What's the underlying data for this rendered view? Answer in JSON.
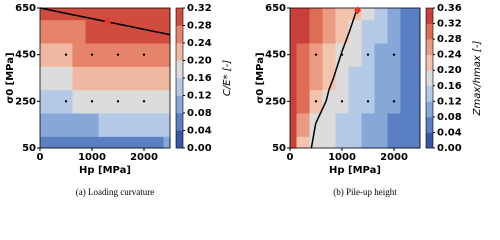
{
  "chart_data": [
    {
      "type": "contour",
      "caption": "(a) Loading curvature",
      "x_label": "Hp [MPa]",
      "y_label": "σ0 [MPa]",
      "colorbar_label": "C/E* [-]",
      "xlim": [
        0,
        2500
      ],
      "ylim": [
        50,
        650
      ],
      "xticks": [
        0,
        1000,
        2000
      ],
      "yticks": [
        50,
        250,
        450,
        650
      ],
      "x": [
        0,
        250,
        500,
        750,
        1000,
        1250,
        1500,
        1750,
        2000,
        2250,
        2500
      ],
      "y": [
        50,
        150,
        250,
        350,
        450,
        550,
        650
      ],
      "z": [
        [
          0.04,
          0.044,
          0.048,
          0.052,
          0.056,
          0.06,
          0.064,
          0.068,
          0.072,
          0.076,
          0.08
        ],
        [
          0.1,
          0.104,
          0.108,
          0.112,
          0.116,
          0.12,
          0.124,
          0.128,
          0.132,
          0.136,
          0.14
        ],
        [
          0.15,
          0.154,
          0.158,
          0.162,
          0.166,
          0.17,
          0.174,
          0.178,
          0.182,
          0.186,
          0.19
        ],
        [
          0.19,
          0.194,
          0.198,
          0.202,
          0.206,
          0.21,
          0.214,
          0.218,
          0.222,
          0.226,
          0.23
        ],
        [
          0.23,
          0.234,
          0.238,
          0.242,
          0.246,
          0.25,
          0.254,
          0.258,
          0.262,
          0.266,
          0.27
        ],
        [
          0.265,
          0.269,
          0.273,
          0.277,
          0.281,
          0.285,
          0.289,
          0.293,
          0.297,
          0.301,
          0.305
        ],
        [
          0.3,
          0.304,
          0.308,
          0.312,
          0.316,
          0.32,
          0.324,
          0.328,
          0.332,
          0.336,
          0.34
        ]
      ],
      "cticks": [
        {
          "value": 0,
          "label": "0.00"
        },
        {
          "value": 0.04,
          "label": "0.04"
        },
        {
          "value": 0.08,
          "label": "0.08"
        },
        {
          "value": 0.12,
          "label": "0.12"
        },
        {
          "value": 0.16,
          "label": "0.16"
        },
        {
          "value": 0.2,
          "label": "0.20"
        },
        {
          "value": 0.24,
          "label": "0.24"
        },
        {
          "value": 0.28,
          "label": "0.28"
        },
        {
          "value": 0.32,
          "label": "0.32"
        }
      ],
      "colors": [
        "#3a56a6",
        "#5a7fc2",
        "#87a7d8",
        "#b4c9e6",
        "#dcdcdc",
        "#f0b8a0",
        "#e5846a",
        "#cf4c3e"
      ],
      "contour_level": 0.3,
      "points": {
        "x": [
          500,
          1000,
          1500,
          2000,
          500,
          1000,
          1500,
          2000
        ],
        "y": [
          450,
          450,
          450,
          450,
          250,
          250,
          250,
          250
        ]
      },
      "marker": {
        "x": 1300,
        "y": 590,
        "color": "#e8322a"
      }
    },
    {
      "type": "contour",
      "caption": "(b) Pile-up height",
      "x_label": "Hp [MPa]",
      "y_label": "σ0 [MPa]",
      "colorbar_label": "Zmax/hmax [-]",
      "xlim": [
        0,
        2500
      ],
      "ylim": [
        50,
        650
      ],
      "xticks": [
        0,
        1000,
        2000
      ],
      "yticks": [
        50,
        250,
        450,
        650
      ],
      "x": [
        0,
        250,
        500,
        750,
        1000,
        1250,
        1500,
        1750,
        2000,
        2250,
        2500
      ],
      "y": [
        50,
        150,
        250,
        350,
        450,
        550,
        650
      ],
      "z": [
        [
          0.36,
          0.227,
          0.185,
          0.167,
          0.149,
          0.131,
          0.113,
          0.095,
          0.076,
          0.058,
          0.04
        ],
        [
          0.36,
          0.274,
          0.197,
          0.178,
          0.158,
          0.138,
          0.119,
          0.099,
          0.079,
          0.06,
          0.04
        ],
        [
          0.36,
          0.297,
          0.234,
          0.19,
          0.169,
          0.147,
          0.126,
          0.104,
          0.083,
          0.061,
          0.04
        ],
        [
          0.36,
          0.31,
          0.26,
          0.21,
          0.181,
          0.158,
          0.134,
          0.111,
          0.087,
          0.064,
          0.04
        ],
        [
          0.36,
          0.319,
          0.277,
          0.236,
          0.197,
          0.17,
          0.144,
          0.118,
          0.092,
          0.066,
          0.04
        ],
        [
          0.36,
          0.325,
          0.289,
          0.254,
          0.219,
          0.186,
          0.157,
          0.128,
          0.099,
          0.069,
          0.04
        ],
        [
          0.36,
          0.329,
          0.298,
          0.268,
          0.237,
          0.206,
          0.173,
          0.141,
          0.109,
          0.077,
          0.04
        ]
      ],
      "cticks": [
        {
          "value": 0,
          "label": "0.00"
        },
        {
          "value": 0.04,
          "label": "0.04"
        },
        {
          "value": 0.08,
          "label": "0.08"
        },
        {
          "value": 0.12,
          "label": "0.12"
        },
        {
          "value": 0.16,
          "label": "0.16"
        },
        {
          "value": 0.2,
          "label": "0.20"
        },
        {
          "value": 0.24,
          "label": "0.24"
        },
        {
          "value": 0.28,
          "label": "0.28"
        },
        {
          "value": 0.32,
          "label": "0.32"
        },
        {
          "value": 0.36,
          "label": "0.36"
        }
      ],
      "colors": [
        "#3a56a6",
        "#5a7fc2",
        "#87a7d8",
        "#b4c9e6",
        "#dcdcdc",
        "#f2c4ae",
        "#eb9b82",
        "#de6d56",
        "#c9403a"
      ],
      "contour_level": 0.2,
      "points": {
        "x": [
          500,
          1000,
          1500,
          2000,
          500,
          1000,
          1500,
          2000
        ],
        "y": [
          450,
          450,
          450,
          450,
          250,
          250,
          250,
          250
        ]
      },
      "marker": {
        "x": 1300,
        "y": 640,
        "color": "#e8322a"
      }
    }
  ]
}
